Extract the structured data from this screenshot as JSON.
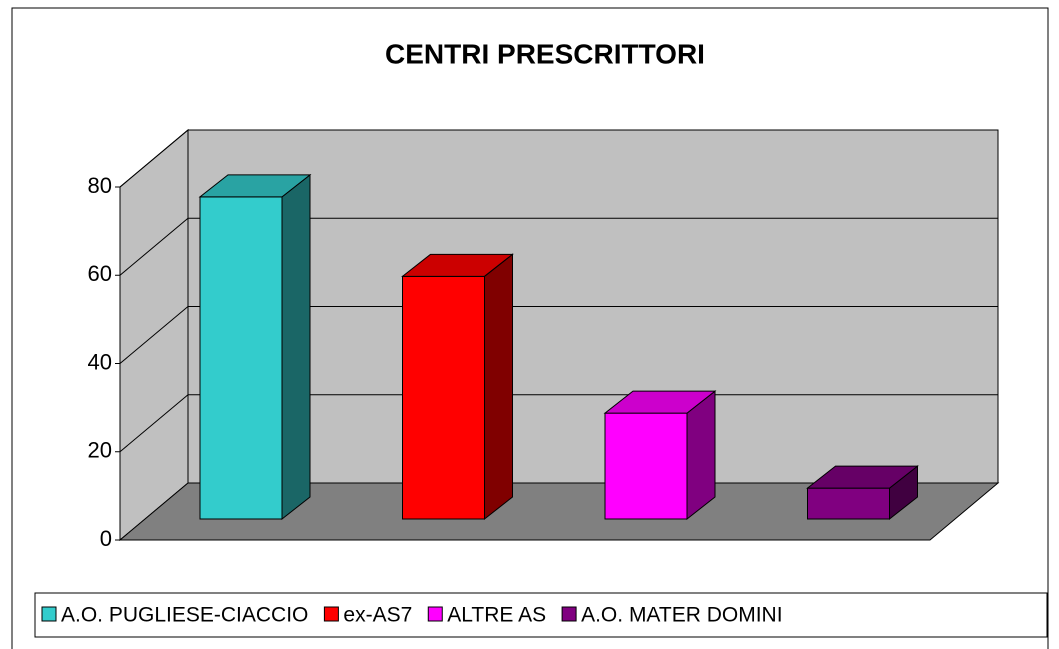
{
  "chart_data": {
    "type": "bar3d",
    "title": "CENTRI PRESCRITTORI",
    "categories": [
      null
    ],
    "series": [
      {
        "name": "A.O. PUGLIESE-CIACCIO",
        "color": "#33CCCC",
        "values": [
          73
        ]
      },
      {
        "name": "ex-AS7",
        "color": "#FF0000",
        "values": [
          55
        ]
      },
      {
        "name": "ALTRE AS",
        "color": "#FF00FF",
        "values": [
          24
        ]
      },
      {
        "name": "A.O. MATER DOMINI",
        "color": "#800080",
        "values": [
          7
        ]
      }
    ],
    "ylim": [
      0,
      80
    ],
    "yticks": [
      0,
      20,
      40,
      60,
      80
    ],
    "grid": true,
    "legend": "bottom"
  }
}
